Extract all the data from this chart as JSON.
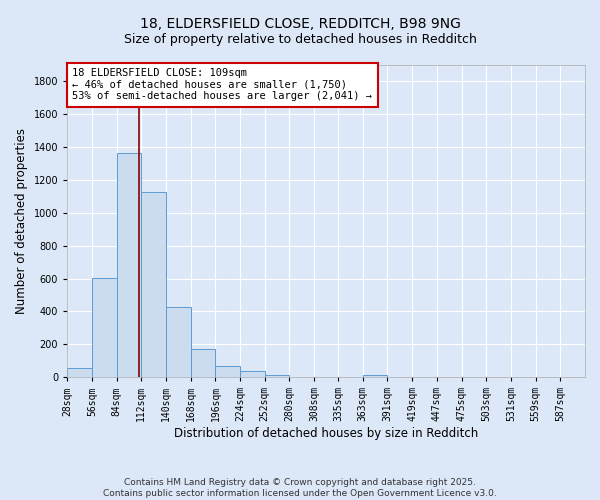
{
  "title1": "18, ELDERSFIELD CLOSE, REDDITCH, B98 9NG",
  "title2": "Size of property relative to detached houses in Redditch",
  "xlabel": "Distribution of detached houses by size in Redditch",
  "ylabel": "Number of detached properties",
  "bins": [
    28,
    56,
    84,
    112,
    140,
    168,
    196,
    224,
    252,
    280,
    308,
    335,
    363,
    391,
    419,
    447,
    475,
    503,
    531,
    559,
    587
  ],
  "counts": [
    55,
    605,
    1365,
    1130,
    425,
    170,
    65,
    35,
    15,
    0,
    0,
    0,
    15,
    0,
    0,
    0,
    0,
    0,
    0,
    0
  ],
  "bar_color": "#ccdcef",
  "bar_edge_color": "#5b9bd5",
  "property_size": 109,
  "vline_color": "#8b0000",
  "annotation_text": "18 ELDERSFIELD CLOSE: 109sqm\n← 46% of detached houses are smaller (1,750)\n53% of semi-detached houses are larger (2,041) →",
  "annotation_box_color": "white",
  "annotation_box_edge_color": "#cc0000",
  "ylim": [
    0,
    1900
  ],
  "yticks": [
    0,
    200,
    400,
    600,
    800,
    1000,
    1200,
    1400,
    1600,
    1800
  ],
  "tick_labels": [
    "28sqm",
    "56sqm",
    "84sqm",
    "112sqm",
    "140sqm",
    "168sqm",
    "196sqm",
    "224sqm",
    "252sqm",
    "280sqm",
    "308sqm",
    "335sqm",
    "363sqm",
    "391sqm",
    "419sqm",
    "447sqm",
    "475sqm",
    "503sqm",
    "531sqm",
    "559sqm",
    "587sqm"
  ],
  "footer": "Contains HM Land Registry data © Crown copyright and database right 2025.\nContains public sector information licensed under the Open Government Licence v3.0.",
  "bg_color": "#dce8f8",
  "plot_bg_color": "#dce8f8",
  "grid_color": "white",
  "title_fontsize": 10,
  "subtitle_fontsize": 9,
  "axis_label_fontsize": 8.5,
  "tick_fontsize": 7,
  "footer_fontsize": 6.5,
  "annotation_fontsize": 7.5
}
